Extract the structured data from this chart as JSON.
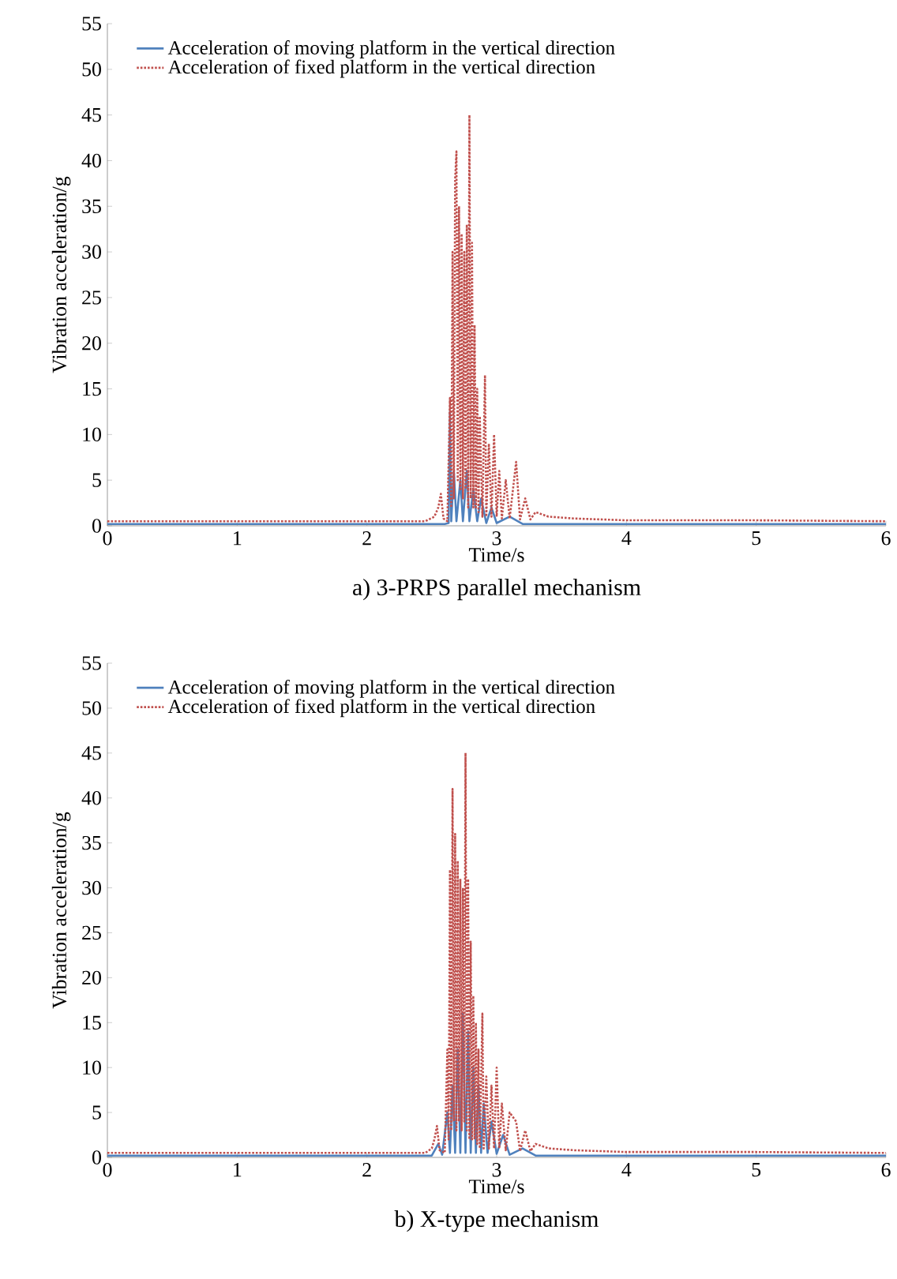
{
  "chart_data": [
    {
      "type": "line",
      "title": "a) 3-PRPS parallel mechanism",
      "xlabel": "Time/s",
      "ylabel": "Vibration acceleration/g",
      "xlim": [
        0,
        6
      ],
      "ylim": [
        0,
        55
      ],
      "xticks": [
        0,
        1,
        2,
        3,
        4,
        5,
        6
      ],
      "yticks": [
        0,
        5,
        10,
        15,
        20,
        25,
        30,
        35,
        40,
        45,
        50,
        55
      ],
      "legend": "top left",
      "series": [
        {
          "name": "Acceleration of moving platform in the vertical direction",
          "color": "#4f81bd",
          "line_style": "solid",
          "x": [
            0,
            2.6,
            2.63,
            2.64,
            2.65,
            2.67,
            2.69,
            2.72,
            2.74,
            2.77,
            2.79,
            2.82,
            2.85,
            2.88,
            2.92,
            2.96,
            3.0,
            3.1,
            3.2,
            6
          ],
          "values": [
            0.2,
            0.2,
            0.3,
            12.5,
            0.5,
            6,
            0.5,
            5,
            0.5,
            6,
            0.5,
            4,
            0.5,
            3,
            0.3,
            2,
            0.3,
            1,
            0.2,
            0.2
          ]
        },
        {
          "name": "Acceleration of fixed platform in the vertical direction",
          "color": "#c0504d",
          "line_style": "dotted",
          "x": [
            0,
            1,
            2,
            2.45,
            2.52,
            2.55,
            2.57,
            2.59,
            2.62,
            2.64,
            2.65,
            2.66,
            2.67,
            2.68,
            2.69,
            2.7,
            2.71,
            2.72,
            2.73,
            2.74,
            2.75,
            2.76,
            2.77,
            2.78,
            2.79,
            2.8,
            2.81,
            2.82,
            2.83,
            2.84,
            2.85,
            2.86,
            2.87,
            2.89,
            2.91,
            2.92,
            2.94,
            2.96,
            2.98,
            3.0,
            3.02,
            3.04,
            3.07,
            3.1,
            3.15,
            3.18,
            3.22,
            3.26,
            3.3,
            3.4,
            3.6,
            4,
            5,
            6
          ],
          "values": [
            0.5,
            0.5,
            0.5,
            0.5,
            1,
            2,
            3.5,
            0.8,
            0.5,
            14,
            2,
            30,
            3,
            38,
            41,
            5,
            35,
            4,
            32,
            3,
            30,
            4,
            33,
            2,
            45,
            3,
            31,
            2,
            22,
            2,
            15,
            1.5,
            12,
            1,
            16.5,
            1,
            9,
            1,
            10,
            1,
            6,
            0.8,
            5,
            0.8,
            7,
            0.7,
            3,
            0.7,
            1.5,
            1,
            0.8,
            0.6,
            0.6,
            0.5
          ]
        }
      ]
    },
    {
      "type": "line",
      "title": "b) X-type mechanism",
      "xlabel": "Time/s",
      "ylabel": "Vibration acceleration/g",
      "xlim": [
        0,
        6
      ],
      "ylim": [
        0,
        55
      ],
      "xticks": [
        0,
        1,
        2,
        3,
        4,
        5,
        6
      ],
      "yticks": [
        0,
        5,
        10,
        15,
        20,
        25,
        30,
        35,
        40,
        45,
        50,
        55
      ],
      "legend": "top left",
      "series": [
        {
          "name": "Acceleration of moving platform in the vertical direction",
          "color": "#4f81bd",
          "line_style": "solid",
          "x": [
            0,
            2.5,
            2.55,
            2.58,
            2.62,
            2.64,
            2.66,
            2.68,
            2.7,
            2.72,
            2.74,
            2.76,
            2.78,
            2.8,
            2.82,
            2.84,
            2.86,
            2.88,
            2.9,
            2.93,
            2.96,
            3.0,
            3.05,
            3.1,
            3.2,
            3.3,
            6
          ],
          "values": [
            0.2,
            0.2,
            1.5,
            0.3,
            5,
            0.5,
            8,
            0.5,
            12,
            0.5,
            16,
            0.5,
            14,
            0.5,
            10,
            0.5,
            8,
            0.5,
            6,
            0.5,
            4,
            0.4,
            2.5,
            0.3,
            1,
            0.2,
            0.2
          ]
        },
        {
          "name": "Acceleration of fixed platform in the vertical direction",
          "color": "#c0504d",
          "line_style": "dotted",
          "x": [
            0,
            1,
            2,
            2.45,
            2.5,
            2.52,
            2.54,
            2.56,
            2.6,
            2.62,
            2.63,
            2.64,
            2.65,
            2.66,
            2.67,
            2.68,
            2.69,
            2.7,
            2.71,
            2.72,
            2.73,
            2.74,
            2.75,
            2.76,
            2.77,
            2.78,
            2.79,
            2.8,
            2.81,
            2.82,
            2.83,
            2.84,
            2.85,
            2.86,
            2.87,
            2.89,
            2.9,
            2.92,
            2.94,
            2.96,
            2.98,
            3.0,
            3.02,
            3.04,
            3.07,
            3.1,
            3.15,
            3.18,
            3.22,
            3.26,
            3.3,
            3.4,
            3.6,
            4,
            5,
            6
          ],
          "values": [
            0.5,
            0.5,
            0.5,
            0.5,
            1,
            2,
            3.5,
            0.8,
            0.5,
            12,
            2,
            32,
            3,
            41,
            4,
            36,
            3,
            33,
            4,
            31,
            3,
            30,
            4,
            45,
            3,
            31,
            2,
            24,
            2,
            18,
            2,
            15,
            1.5,
            12,
            1,
            16,
            1,
            9,
            1,
            8,
            1,
            10,
            1,
            6,
            0.8,
            5,
            4,
            0.7,
            3,
            0.7,
            1.5,
            1,
            0.8,
            0.6,
            0.6,
            0.5
          ]
        }
      ]
    }
  ]
}
